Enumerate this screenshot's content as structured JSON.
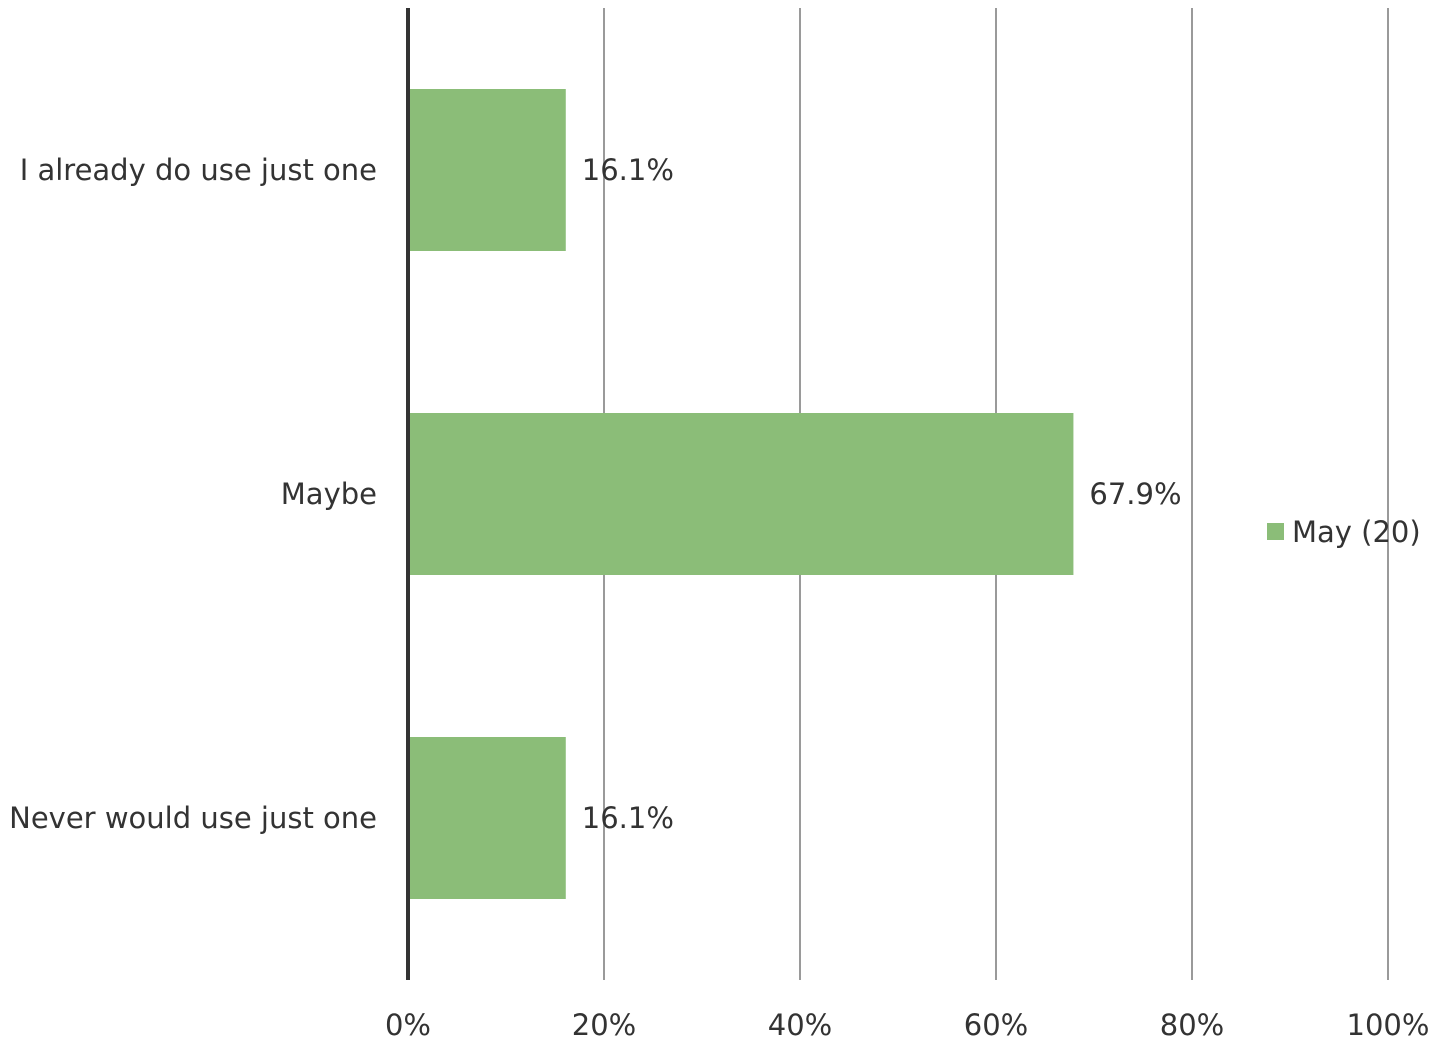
{
  "chart_data": {
    "type": "bar",
    "orientation": "horizontal",
    "title": "",
    "xlabel": "",
    "ylabel": "",
    "categories": [
      "I already do use just one",
      "Maybe",
      "Never would use just one"
    ],
    "series": [
      {
        "name": "May (20)",
        "values": [
          16.1,
          67.9,
          16.1
        ],
        "data_labels": [
          "16.1%",
          "67.9%",
          "16.1%"
        ],
        "color": "#8bbd78"
      }
    ],
    "xlim": [
      0,
      100
    ],
    "x_ticks": [
      0,
      20,
      40,
      60,
      80,
      100
    ],
    "x_tick_labels": [
      "0%",
      "20%",
      "40%",
      "60%",
      "80%",
      "100%"
    ],
    "grid": "vertical",
    "legend": {
      "position": "right",
      "entries": [
        "May (20)"
      ]
    },
    "colors": {
      "bar": "#8bbd78",
      "gridline": "#9a9a9a",
      "axis": "#333333",
      "text": "#333333"
    }
  }
}
